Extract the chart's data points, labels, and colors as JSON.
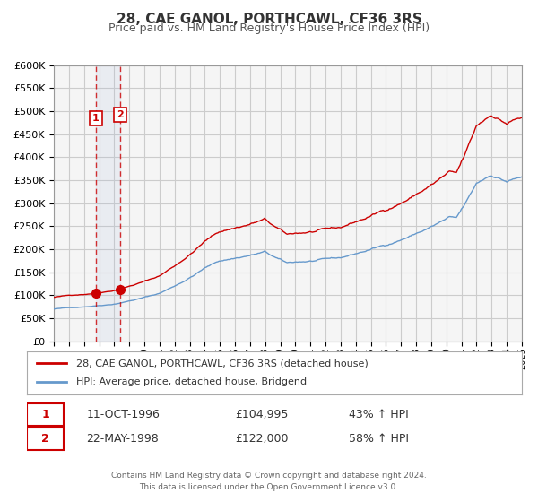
{
  "title": "28, CAE GANOL, PORTHCAWL, CF36 3RS",
  "subtitle": "Price paid vs. HM Land Registry's House Price Index (HPI)",
  "legend_line1": "28, CAE GANOL, PORTHCAWL, CF36 3RS (detached house)",
  "legend_line2": "HPI: Average price, detached house, Bridgend",
  "transaction1_label": "1",
  "transaction1_date": "11-OCT-1996",
  "transaction1_price": "£104,995",
  "transaction1_hpi": "43% ↑ HPI",
  "transaction2_label": "2",
  "transaction2_date": "22-MAY-1998",
  "transaction2_price": "£122,000",
  "transaction2_hpi": "58% ↑ HPI",
  "transaction1_year": 1996.78,
  "transaction1_value": 104995,
  "transaction2_year": 1998.38,
  "transaction2_value": 122000,
  "footer": "Contains HM Land Registry data © Crown copyright and database right 2024.\nThis data is licensed under the Open Government Licence v3.0.",
  "red_color": "#cc0000",
  "blue_color": "#6699cc",
  "bg_color": "#ffffff",
  "plot_bg": "#f5f5f5",
  "grid_color": "#cccccc",
  "hatch_color": "#cccccc",
  "vline1_x": 1996.78,
  "vline2_x": 1998.38,
  "ylim_max": 600000,
  "ylim_min": 0,
  "xlim_min": 1994,
  "xlim_max": 2025
}
